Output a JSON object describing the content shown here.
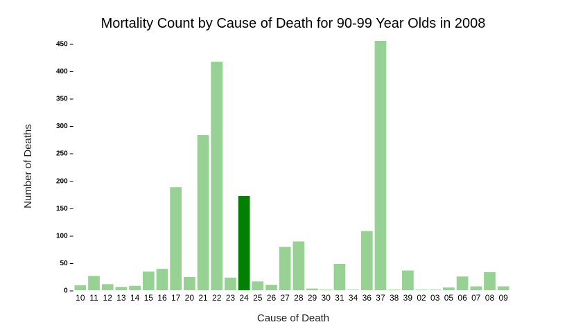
{
  "chart_data": {
    "type": "bar",
    "title": "Mortality Count by Cause of Death for 90-99 Year Olds in 2008",
    "xlabel": "Cause of Death",
    "ylabel": "Number of Deaths",
    "ylim": [
      0,
      455
    ],
    "yticks": [
      0,
      50,
      100,
      150,
      200,
      250,
      300,
      350,
      400,
      450
    ],
    "ytick_labels": [
      "0 –",
      "50 –",
      "100 –",
      "150 –",
      "200 –",
      "250 –",
      "300 –",
      "350 –",
      "400 –",
      "450 –"
    ],
    "grid": false,
    "legend": "none",
    "categories": [
      "10",
      "11",
      "12",
      "13",
      "14",
      "15",
      "16",
      "17",
      "20",
      "21",
      "22",
      "23",
      "24",
      "25",
      "26",
      "27",
      "28",
      "29",
      "30",
      "31",
      "34",
      "36",
      "37",
      "38",
      "39",
      "02",
      "03",
      "05",
      "06",
      "07",
      "08",
      "09"
    ],
    "values": [
      9,
      26,
      11,
      6,
      8,
      34,
      39,
      188,
      24,
      283,
      417,
      23,
      172,
      16,
      10,
      79,
      89,
      3,
      1,
      48,
      1,
      108,
      455,
      1,
      36,
      1,
      1,
      5,
      25,
      7,
      33,
      7
    ],
    "highlight_category": "24",
    "colors": {
      "bar": "#98d194",
      "highlight": "#008000"
    }
  }
}
